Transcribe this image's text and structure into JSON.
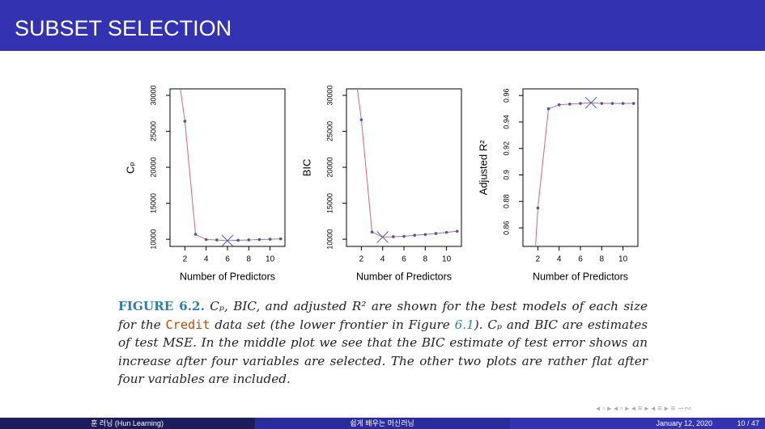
{
  "header": {
    "title": "SUBSET SELECTION"
  },
  "chart_data": [
    {
      "type": "line",
      "ylabel": "Cₚ",
      "xlabel": "Number of Predictors",
      "x": [
        1,
        2,
        3,
        4,
        5,
        6,
        7,
        8,
        9,
        10,
        11
      ],
      "series": [
        {
          "name": "Cₚ",
          "color": "#d9607a",
          "values": [
            37000,
            26400,
            10680,
            9950,
            9900,
            9800,
            9850,
            9900,
            9950,
            10000,
            10050
          ]
        }
      ],
      "best": "min",
      "xlim": [
        0.6,
        11.4
      ],
      "xticks": [
        2,
        4,
        6,
        8,
        10
      ],
      "ylim": [
        9000,
        30900
      ],
      "yticks": [
        10000,
        15000,
        20000,
        25000,
        30000
      ]
    },
    {
      "type": "line",
      "ylabel": "BIC",
      "xlabel": "Number of Predictors",
      "x": [
        1,
        2,
        3,
        4,
        5,
        6,
        7,
        8,
        9,
        10,
        11
      ],
      "series": [
        {
          "name": "BIC",
          "color": "#d9607a",
          "values": [
            38000,
            26600,
            11000,
            10300,
            10350,
            10400,
            10550,
            10650,
            10800,
            10950,
            11100
          ]
        }
      ],
      "best": "min",
      "xlim": [
        0.6,
        11.4
      ],
      "xticks": [
        2,
        4,
        6,
        8,
        10
      ],
      "ylim": [
        9000,
        30900
      ],
      "yticks": [
        10000,
        15000,
        20000,
        25000,
        30000
      ]
    },
    {
      "type": "line",
      "ylabel": "Adjusted R²",
      "xlabel": "Number of Predictors",
      "x": [
        1,
        2,
        3,
        4,
        5,
        6,
        7,
        8,
        9,
        10,
        11
      ],
      "series": [
        {
          "name": "Adjusted R²",
          "color": "#d9607a",
          "values": [
            0.74,
            0.875,
            0.95,
            0.953,
            0.9535,
            0.954,
            0.9545,
            0.954,
            0.954,
            0.954,
            0.954
          ]
        }
      ],
      "best": "max",
      "xlim": [
        0.6,
        11.4
      ],
      "xticks": [
        2,
        4,
        6,
        8,
        10
      ],
      "ylim": [
        0.846,
        0.965
      ],
      "yticks": [
        0.86,
        0.88,
        0.9,
        0.92,
        0.94,
        0.96
      ]
    }
  ],
  "caption": {
    "label": "FIGURE 6.2.",
    "parts": [
      "Cₚ, BIC, and adjusted R² are shown for the best models of each size for the ",
      "Credit",
      " data set (the lower frontier in Figure ",
      "6.1",
      "). Cₚ and BIC are estimates of test MSE. In the middle plot we see that the BIC estimate of test error shows an increase after four variables are selected. The other two plots are rather flat after four variables are included."
    ]
  },
  "footer": {
    "author": "훈 러닝 (Hun Learning)",
    "course": "쉽게 배우는 머신러닝",
    "date": "January 12, 2020",
    "page": "10 / 47"
  }
}
